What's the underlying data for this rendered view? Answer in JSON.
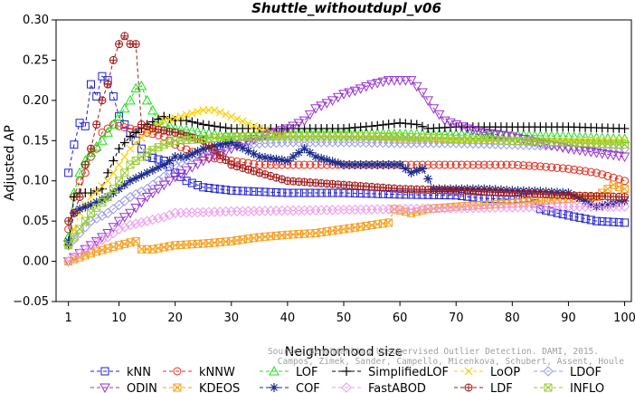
{
  "chart_data": {
    "type": "line",
    "title": "Shuttle_withoutdupl_v06",
    "xlabel": "Neighborhood size",
    "ylabel": "Adjusted AP",
    "xlim": [
      0,
      100
    ],
    "ylim": [
      -0.05,
      0.3
    ],
    "xticks": [
      1,
      10,
      20,
      30,
      40,
      50,
      60,
      70,
      80,
      90,
      100
    ],
    "yticks": [
      -0.05,
      0.0,
      0.05,
      0.1,
      0.15,
      0.2,
      0.25,
      0.3
    ],
    "ytick_labels": [
      "−0.05",
      "0.00",
      "0.05",
      "0.10",
      "0.15",
      "0.20",
      "0.25",
      "0.30"
    ],
    "grid": false,
    "legend_position": "bottom",
    "watermark": [
      "Source: Benchmarking Unsupervised Outlier Detection. DAMI, 2015.",
      "Campos, Zimek, Sander, Campello, Micenkova, Schubert, Assent, Houle"
    ],
    "series": [
      {
        "name": "kNN",
        "color": "#1f1fd0",
        "marker": "square",
        "points": [
          [
            1,
            0.11
          ],
          [
            2,
            0.145
          ],
          [
            3,
            0.172
          ],
          [
            4,
            0.168
          ],
          [
            5,
            0.22
          ],
          [
            6,
            0.205
          ],
          [
            7,
            0.23
          ],
          [
            8,
            0.225
          ],
          [
            9,
            0.205
          ],
          [
            10,
            0.18
          ],
          [
            12,
            0.16
          ],
          [
            15,
            0.13
          ],
          [
            18,
            0.125
          ],
          [
            20,
            0.11
          ],
          [
            22,
            0.1
          ],
          [
            25,
            0.092
          ],
          [
            30,
            0.088
          ],
          [
            40,
            0.085
          ],
          [
            50,
            0.085
          ],
          [
            60,
            0.083
          ],
          [
            70,
            0.082
          ],
          [
            75,
            0.078
          ],
          [
            80,
            0.077
          ],
          [
            83,
            0.079
          ],
          [
            85,
            0.065
          ],
          [
            88,
            0.06
          ],
          [
            90,
            0.057
          ],
          [
            95,
            0.05
          ],
          [
            100,
            0.048
          ]
        ]
      },
      {
        "name": "kNNW",
        "color": "#e0301e",
        "marker": "circle",
        "points": [
          [
            1,
            0.04
          ],
          [
            2,
            0.08
          ],
          [
            3,
            0.1
          ],
          [
            4,
            0.11
          ],
          [
            5,
            0.13
          ],
          [
            6,
            0.14
          ],
          [
            7,
            0.16
          ],
          [
            8,
            0.165
          ],
          [
            9,
            0.17
          ],
          [
            10,
            0.168
          ],
          [
            12,
            0.165
          ],
          [
            15,
            0.16
          ],
          [
            18,
            0.155
          ],
          [
            20,
            0.145
          ],
          [
            25,
            0.13
          ],
          [
            30,
            0.125
          ],
          [
            35,
            0.12
          ],
          [
            40,
            0.12
          ],
          [
            50,
            0.12
          ],
          [
            60,
            0.12
          ],
          [
            70,
            0.12
          ],
          [
            75,
            0.12
          ],
          [
            80,
            0.12
          ],
          [
            85,
            0.118
          ],
          [
            90,
            0.115
          ],
          [
            95,
            0.11
          ],
          [
            100,
            0.1
          ]
        ]
      },
      {
        "name": "LOF",
        "color": "#22dd22",
        "marker": "triangle-up",
        "points": [
          [
            1,
            0.03
          ],
          [
            2,
            0.085
          ],
          [
            3,
            0.11
          ],
          [
            4,
            0.125
          ],
          [
            5,
            0.135
          ],
          [
            7,
            0.15
          ],
          [
            8,
            0.16
          ],
          [
            10,
            0.18
          ],
          [
            12,
            0.2
          ],
          [
            13,
            0.215
          ],
          [
            14,
            0.218
          ],
          [
            15,
            0.2
          ],
          [
            17,
            0.175
          ],
          [
            20,
            0.165
          ],
          [
            25,
            0.16
          ],
          [
            30,
            0.155
          ],
          [
            40,
            0.16
          ],
          [
            50,
            0.16
          ],
          [
            60,
            0.158
          ],
          [
            70,
            0.158
          ],
          [
            80,
            0.157
          ],
          [
            90,
            0.155
          ],
          [
            100,
            0.152
          ]
        ]
      },
      {
        "name": "SimplifiedLOF",
        "color": "#000000",
        "marker": "plus",
        "points": [
          [
            1,
            0.02
          ],
          [
            2,
            0.08
          ],
          [
            3,
            0.085
          ],
          [
            5,
            0.085
          ],
          [
            7,
            0.09
          ],
          [
            8,
            0.11
          ],
          [
            10,
            0.14
          ],
          [
            12,
            0.155
          ],
          [
            15,
            0.17
          ],
          [
            18,
            0.18
          ],
          [
            20,
            0.175
          ],
          [
            22,
            0.175
          ],
          [
            25,
            0.17
          ],
          [
            30,
            0.165
          ],
          [
            40,
            0.165
          ],
          [
            50,
            0.165
          ],
          [
            55,
            0.168
          ],
          [
            60,
            0.172
          ],
          [
            63,
            0.17
          ],
          [
            65,
            0.165
          ],
          [
            70,
            0.167
          ],
          [
            80,
            0.167
          ],
          [
            90,
            0.167
          ],
          [
            100,
            0.165
          ]
        ]
      },
      {
        "name": "LoOP",
        "color": "#ffd000",
        "marker": "x",
        "points": [
          [
            1,
            0.02
          ],
          [
            3,
            0.06
          ],
          [
            5,
            0.08
          ],
          [
            8,
            0.1
          ],
          [
            10,
            0.12
          ],
          [
            12,
            0.14
          ],
          [
            15,
            0.16
          ],
          [
            18,
            0.175
          ],
          [
            20,
            0.178
          ],
          [
            25,
            0.188
          ],
          [
            27,
            0.188
          ],
          [
            30,
            0.18
          ],
          [
            35,
            0.165
          ],
          [
            40,
            0.155
          ],
          [
            50,
            0.155
          ],
          [
            60,
            0.15
          ],
          [
            70,
            0.15
          ],
          [
            80,
            0.15
          ],
          [
            90,
            0.15
          ],
          [
            100,
            0.15
          ]
        ]
      },
      {
        "name": "LDOF",
        "color": "#9a9aee",
        "marker": "diamond",
        "points": [
          [
            1,
            0.02
          ],
          [
            5,
            0.05
          ],
          [
            8,
            0.06
          ],
          [
            10,
            0.07
          ],
          [
            12,
            0.08
          ],
          [
            15,
            0.09
          ],
          [
            18,
            0.105
          ],
          [
            20,
            0.12
          ],
          [
            25,
            0.135
          ],
          [
            30,
            0.145
          ],
          [
            40,
            0.148
          ],
          [
            50,
            0.148
          ],
          [
            60,
            0.147
          ],
          [
            70,
            0.147
          ],
          [
            80,
            0.145
          ],
          [
            90,
            0.143
          ],
          [
            100,
            0.14
          ]
        ]
      },
      {
        "name": "ODIN",
        "color": "#9933cc",
        "marker": "triangle-down",
        "points": [
          [
            1,
            0.0
          ],
          [
            3,
            0.01
          ],
          [
            5,
            0.02
          ],
          [
            8,
            0.035
          ],
          [
            10,
            0.05
          ],
          [
            12,
            0.06
          ],
          [
            15,
            0.08
          ],
          [
            18,
            0.095
          ],
          [
            20,
            0.105
          ],
          [
            25,
            0.125
          ],
          [
            30,
            0.14
          ],
          [
            35,
            0.155
          ],
          [
            40,
            0.165
          ],
          [
            43,
            0.175
          ],
          [
            45,
            0.19
          ],
          [
            48,
            0.2
          ],
          [
            50,
            0.208
          ],
          [
            52,
            0.212
          ],
          [
            55,
            0.22
          ],
          [
            58,
            0.225
          ],
          [
            60,
            0.225
          ],
          [
            62,
            0.225
          ],
          [
            64,
            0.21
          ],
          [
            66,
            0.19
          ],
          [
            68,
            0.175
          ],
          [
            70,
            0.17
          ],
          [
            72,
            0.165
          ],
          [
            75,
            0.16
          ],
          [
            80,
            0.155
          ],
          [
            85,
            0.147
          ],
          [
            90,
            0.14
          ],
          [
            95,
            0.135
          ],
          [
            100,
            0.13
          ]
        ]
      },
      {
        "name": "KDEOS",
        "color": "#f5a020",
        "marker": "square-x",
        "points": [
          [
            1,
            0.0
          ],
          [
            5,
            0.01
          ],
          [
            10,
            0.02
          ],
          [
            13,
            0.025
          ],
          [
            14,
            0.015
          ],
          [
            16,
            0.015
          ],
          [
            20,
            0.02
          ],
          [
            25,
            0.022
          ],
          [
            30,
            0.025
          ],
          [
            35,
            0.03
          ],
          [
            40,
            0.033
          ],
          [
            45,
            0.035
          ],
          [
            50,
            0.04
          ],
          [
            55,
            0.045
          ],
          [
            58,
            0.048
          ],
          [
            59,
            0.065
          ],
          [
            62,
            0.06
          ],
          [
            65,
            0.065
          ],
          [
            70,
            0.068
          ],
          [
            75,
            0.07
          ],
          [
            80,
            0.072
          ],
          [
            85,
            0.075
          ],
          [
            90,
            0.078
          ],
          [
            95,
            0.08
          ],
          [
            98,
            0.095
          ],
          [
            100,
            0.09
          ]
        ]
      },
      {
        "name": "COF",
        "color": "#1a2a8a",
        "marker": "asterisk",
        "points": [
          [
            1,
            0.025
          ],
          [
            2,
            0.06
          ],
          [
            3,
            0.065
          ],
          [
            5,
            0.07
          ],
          [
            8,
            0.08
          ],
          [
            10,
            0.09
          ],
          [
            12,
            0.1
          ],
          [
            15,
            0.11
          ],
          [
            18,
            0.12
          ],
          [
            20,
            0.13
          ],
          [
            22,
            0.13
          ],
          [
            25,
            0.14
          ],
          [
            28,
            0.145
          ],
          [
            30,
            0.148
          ],
          [
            35,
            0.13
          ],
          [
            40,
            0.125
          ],
          [
            43,
            0.14
          ],
          [
            45,
            0.13
          ],
          [
            50,
            0.12
          ],
          [
            55,
            0.12
          ],
          [
            60,
            0.12
          ],
          [
            62,
            0.11
          ],
          [
            64,
            0.115
          ],
          [
            66,
            0.09
          ],
          [
            70,
            0.09
          ],
          [
            75,
            0.09
          ],
          [
            80,
            0.088
          ],
          [
            85,
            0.087
          ],
          [
            90,
            0.085
          ],
          [
            95,
            0.068
          ],
          [
            100,
            0.075
          ]
        ]
      },
      {
        "name": "FastABOD",
        "color": "#ee99ee",
        "marker": "diamond",
        "points": [
          [
            1,
            0.0
          ],
          [
            3,
            0.01
          ],
          [
            5,
            0.02
          ],
          [
            8,
            0.03
          ],
          [
            10,
            0.04
          ],
          [
            12,
            0.045
          ],
          [
            15,
            0.05
          ],
          [
            18,
            0.055
          ],
          [
            20,
            0.06
          ],
          [
            25,
            0.061
          ],
          [
            30,
            0.062
          ],
          [
            40,
            0.063
          ],
          [
            50,
            0.064
          ],
          [
            60,
            0.065
          ],
          [
            70,
            0.066
          ],
          [
            80,
            0.067
          ],
          [
            90,
            0.068
          ],
          [
            100,
            0.068
          ]
        ]
      },
      {
        "name": "LDF",
        "color": "#a01818",
        "marker": "circle-plus",
        "points": [
          [
            1,
            0.05
          ],
          [
            2,
            0.06
          ],
          [
            3,
            0.08
          ],
          [
            4,
            0.12
          ],
          [
            5,
            0.14
          ],
          [
            6,
            0.17
          ],
          [
            7,
            0.2
          ],
          [
            8,
            0.22
          ],
          [
            9,
            0.25
          ],
          [
            10,
            0.27
          ],
          [
            11,
            0.28
          ],
          [
            12,
            0.27
          ],
          [
            13,
            0.27
          ],
          [
            14,
            0.17
          ],
          [
            16,
            0.165
          ],
          [
            20,
            0.16
          ],
          [
            25,
            0.15
          ],
          [
            30,
            0.12
          ],
          [
            40,
            0.1
          ],
          [
            50,
            0.095
          ],
          [
            60,
            0.09
          ],
          [
            70,
            0.088
          ],
          [
            80,
            0.085
          ],
          [
            90,
            0.082
          ],
          [
            100,
            0.08
          ]
        ]
      },
      {
        "name": "INFLO",
        "color": "#99cc33",
        "marker": "square-x",
        "points": [
          [
            1,
            0.02
          ],
          [
            3,
            0.04
          ],
          [
            5,
            0.06
          ],
          [
            8,
            0.08
          ],
          [
            10,
            0.1
          ],
          [
            12,
            0.12
          ],
          [
            15,
            0.135
          ],
          [
            18,
            0.145
          ],
          [
            20,
            0.15
          ],
          [
            25,
            0.152
          ],
          [
            30,
            0.155
          ],
          [
            40,
            0.155
          ],
          [
            50,
            0.155
          ],
          [
            60,
            0.155
          ],
          [
            70,
            0.152
          ],
          [
            80,
            0.15
          ],
          [
            90,
            0.148
          ],
          [
            100,
            0.145
          ]
        ]
      }
    ]
  }
}
